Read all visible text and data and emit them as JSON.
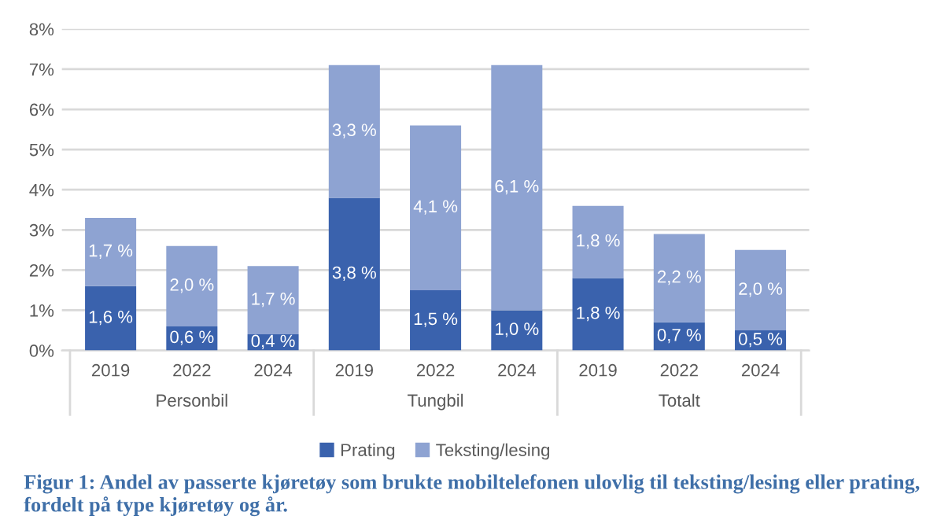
{
  "chart_data": {
    "type": "bar",
    "stacked": true,
    "categories": [
      "2019",
      "2022",
      "2024",
      "2019",
      "2022",
      "2024",
      "2019",
      "2022",
      "2024"
    ],
    "series": [
      {
        "name": "Prating",
        "color": "#3a62ad",
        "values": [
          1.6,
          0.6,
          0.4,
          3.8,
          1.5,
          1.0,
          1.8,
          0.7,
          0.5
        ],
        "value_labels": [
          "1,6 %",
          "0,6 %",
          "0,4 %",
          "3,8 %",
          "1,5 %",
          "1,0 %",
          "1,8 %",
          "0,7 %",
          "0,5 %"
        ]
      },
      {
        "name": "Teksting/lesing",
        "color": "#8ea3d2",
        "values": [
          1.7,
          2.0,
          1.7,
          3.3,
          4.1,
          6.1,
          1.8,
          2.2,
          2.0
        ],
        "value_labels": [
          "1,7 %",
          "2,0 %",
          "1,7 %",
          "3,3 %",
          "4,1 %",
          "6,1 %",
          "1,8 %",
          "2,2 %",
          "2,0 %"
        ]
      }
    ],
    "ylim": [
      0,
      8
    ],
    "yticks": [
      {
        "value": 0,
        "label": "0%"
      },
      {
        "value": 1,
        "label": "1%"
      },
      {
        "value": 2,
        "label": "2%"
      },
      {
        "value": 3,
        "label": "3%"
      },
      {
        "value": 4,
        "label": "4%"
      },
      {
        "value": 5,
        "label": "5%"
      },
      {
        "value": 6,
        "label": "6%"
      },
      {
        "value": 7,
        "label": "7%"
      },
      {
        "value": 8,
        "label": "8%"
      }
    ],
    "grid": "y",
    "legend": "bottom",
    "annotations": [
      "Personbil",
      "Tungbil",
      "Totalt",
      "Figur 1: Andel av passerte kjøretøy som brukte mobiltelefonen ulovlig til teksting/lesing eller prating, fordelt på type kjøretøy og år."
    ]
  }
}
